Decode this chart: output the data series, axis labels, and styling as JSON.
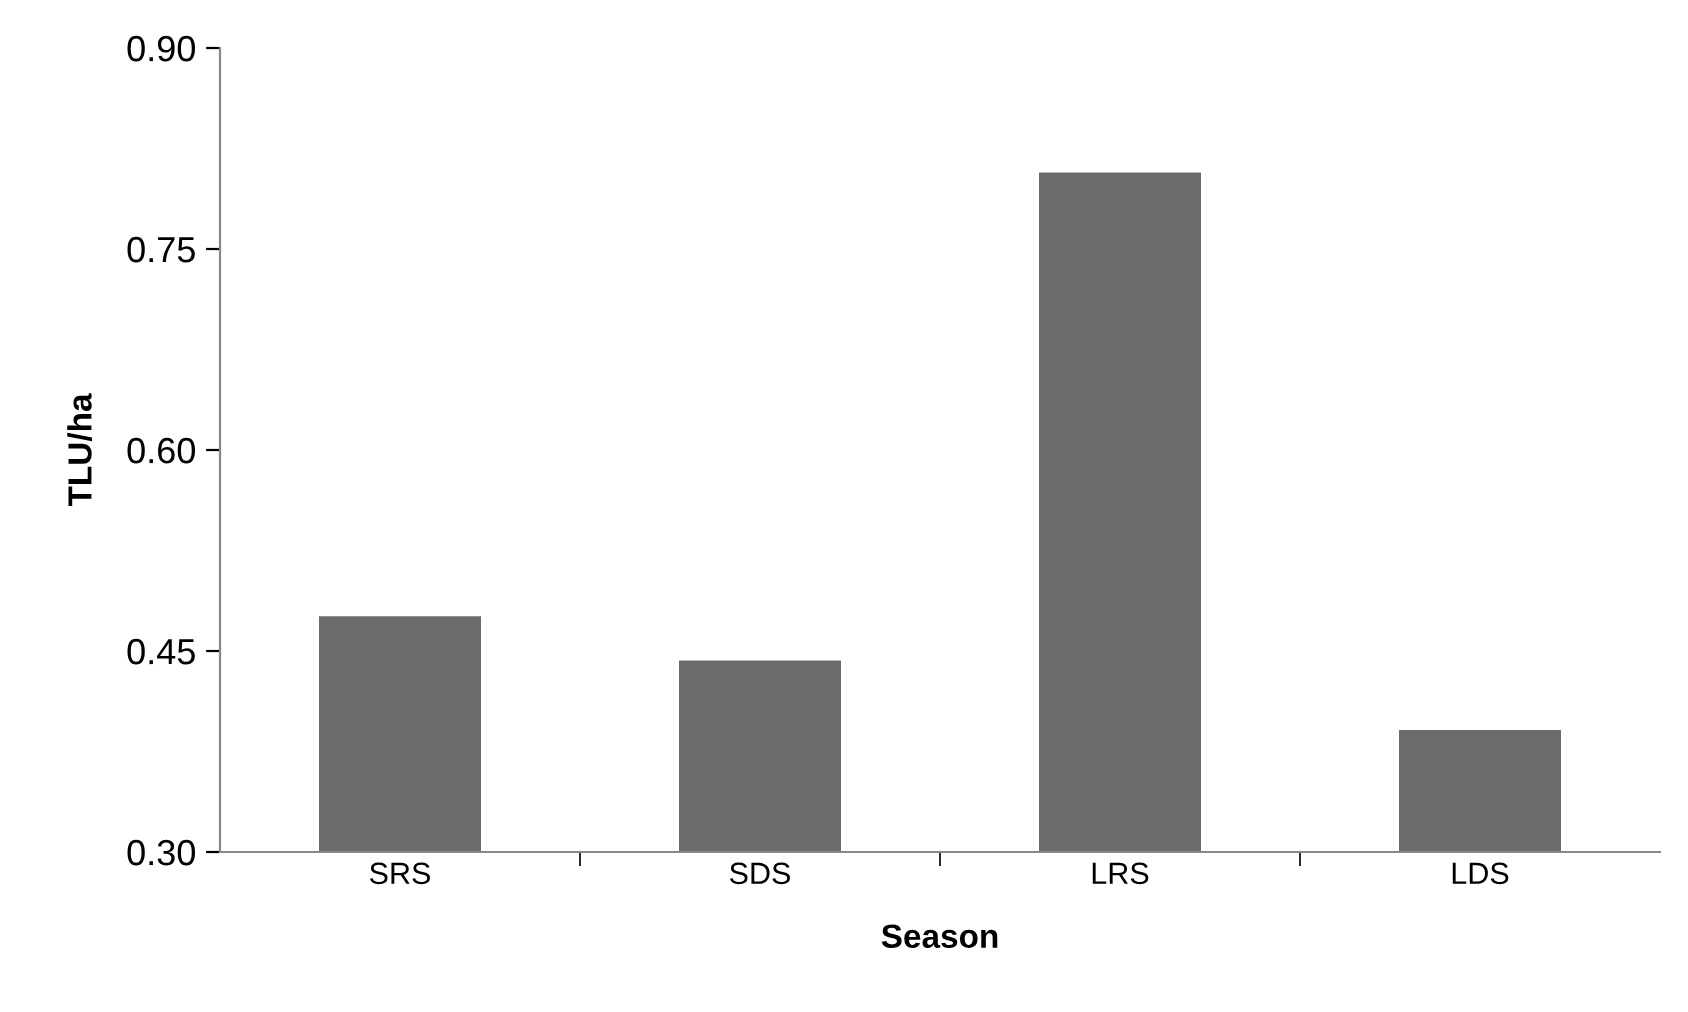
{
  "chart_data": {
    "type": "bar",
    "xlabel": "Season",
    "ylabel": "TLU/ha",
    "categories": [
      "SRS",
      "SDS",
      "LRS",
      "LDS"
    ],
    "values": [
      0.476,
      0.443,
      0.807,
      0.391
    ],
    "color": "#6b6b6b",
    "ylim": [
      0.3,
      0.9
    ],
    "yticks": [
      {
        "value": 0.3,
        "label": "0.30"
      },
      {
        "value": 0.45,
        "label": "0.45"
      },
      {
        "value": 0.6,
        "label": "0.60"
      },
      {
        "value": 0.75,
        "label": "0.75"
      },
      {
        "value": 0.9,
        "label": "0.90"
      }
    ],
    "grid": false,
    "legend": false
  }
}
